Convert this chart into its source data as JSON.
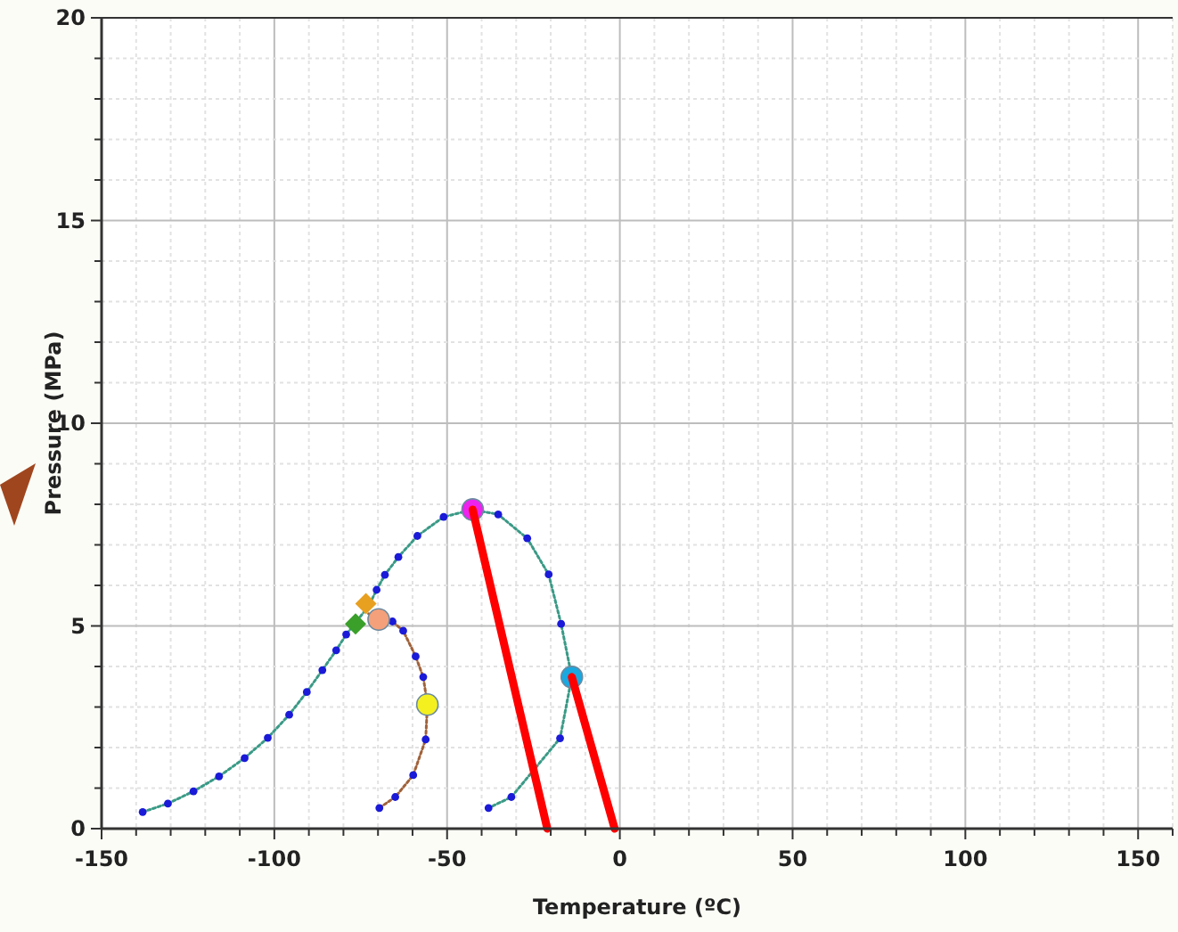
{
  "chart_data": {
    "type": "line",
    "xlabel": "Temperature (ºC)",
    "ylabel": "Pressure (MPa)",
    "xlim": [
      -150,
      160
    ],
    "ylim": [
      0,
      20
    ],
    "xticks": [
      -150,
      {
        "value": -140,
        "label": null
      },
      {
        "value": -130,
        "label": null
      },
      {
        "value": -120,
        "label": null
      },
      {
        "value": -110,
        "label": null
      },
      -100,
      {
        "value": -90,
        "label": null
      },
      {
        "value": -80,
        "label": null
      },
      {
        "value": -70,
        "label": null
      },
      {
        "value": -60,
        "label": null
      },
      -50,
      {
        "value": -40,
        "label": null
      },
      {
        "value": -30,
        "label": null
      },
      {
        "value": -20,
        "label": null
      },
      {
        "value": -10,
        "label": null
      },
      0,
      {
        "value": 10,
        "label": null
      },
      {
        "value": 20,
        "label": null
      },
      {
        "value": 30,
        "label": null
      },
      {
        "value": 40,
        "label": null
      },
      50,
      {
        "value": 60,
        "label": null
      },
      {
        "value": 70,
        "label": null
      },
      {
        "value": 80,
        "label": null
      },
      {
        "value": 90,
        "label": null
      },
      100,
      {
        "value": 110,
        "label": null
      },
      {
        "value": 120,
        "label": null
      },
      {
        "value": 130,
        "label": null
      },
      {
        "value": 140,
        "label": null
      },
      150,
      {
        "value": 160,
        "label": null
      }
    ],
    "yticks": [
      0,
      {
        "value": 1,
        "label": null
      },
      {
        "value": 2,
        "label": null
      },
      {
        "value": 3,
        "label": null
      },
      {
        "value": 4,
        "label": null
      },
      5,
      {
        "value": 6,
        "label": null
      },
      {
        "value": 7,
        "label": null
      },
      {
        "value": 8,
        "label": null
      },
      {
        "value": 9,
        "label": null
      },
      10,
      {
        "value": 11,
        "label": null
      },
      {
        "value": 12,
        "label": null
      },
      {
        "value": 13,
        "label": null
      },
      {
        "value": 14,
        "label": null
      },
      15,
      {
        "value": 16,
        "label": null
      },
      {
        "value": 17,
        "label": null
      },
      {
        "value": 18,
        "label": null
      },
      {
        "value": 19,
        "label": null
      },
      20
    ],
    "grid": true,
    "series": [
      {
        "color": "#3a9a86",
        "line_style": "dotted",
        "marker": "none",
        "x": [
          -138.1,
          -130.8,
          -123.4,
          -116,
          -108.6,
          -101.9,
          -95.7,
          -90.6,
          -86.1,
          -82.1,
          -79.2,
          -76.8,
          -72.7,
          -70.4,
          -68,
          -64.1,
          -58.6,
          -51,
          -42.6,
          -35.2,
          -26.8,
          -20.6,
          -17,
          -13.9,
          -17.3,
          -31.4,
          -38
        ],
        "values": [
          0.41,
          0.62,
          0.92,
          1.29,
          1.74,
          2.24,
          2.81,
          3.37,
          3.91,
          4.4,
          4.79,
          5.05,
          5.49,
          5.89,
          6.26,
          6.7,
          7.22,
          7.69,
          7.87,
          7.75,
          7.16,
          6.27,
          5.05,
          3.74,
          2.23,
          0.78,
          0.51
        ]
      },
      {
        "color": "#a0623a",
        "line_style": "dotted",
        "marker": "none",
        "x": [
          -72.7,
          -69.8,
          -65.8,
          -62.7,
          -59.1,
          -56.9,
          -55.7,
          -56.2,
          -59.8,
          -65,
          -69.6
        ],
        "values": [
          5.3,
          5.16,
          5.11,
          4.88,
          4.25,
          3.74,
          3.06,
          2.2,
          1.32,
          0.78,
          0.51
        ]
      },
      {
        "type": "scatter",
        "color": "#1a1ad8",
        "marker": "circle",
        "x": [
          -138.1,
          -130.8,
          -123.4,
          -116,
          -108.6,
          -101.9,
          -95.7,
          -90.6,
          -86.1,
          -82.1,
          -79.2,
          -70.4,
          -68,
          -64.1,
          -58.6,
          -51,
          -35.2,
          -26.8,
          -20.6,
          -17,
          -17.3,
          -31.4,
          -38,
          -65.8,
          -62.7,
          -59.1,
          -56.9,
          -56.2,
          -59.8,
          -65,
          -69.6
        ],
        "values": [
          0.41,
          0.62,
          0.92,
          1.29,
          1.74,
          2.24,
          2.81,
          3.37,
          3.91,
          4.4,
          4.79,
          5.89,
          6.26,
          6.7,
          7.22,
          7.69,
          7.75,
          7.16,
          6.27,
          5.05,
          2.23,
          0.78,
          0.51,
          5.11,
          4.88,
          4.25,
          3.74,
          2.2,
          1.32,
          0.78,
          0.51
        ]
      },
      {
        "type": "line",
        "color": "#ff0000",
        "line_style": "solid",
        "marker": "none",
        "x": [
          -42.6,
          -21
        ],
        "values": [
          7.87,
          0
        ]
      },
      {
        "type": "line",
        "color": "#ff0000",
        "line_style": "solid",
        "marker": "none",
        "x": [
          -13.9,
          -1.5
        ],
        "values": [
          3.74,
          0
        ]
      },
      {
        "type": "scatter",
        "color": "#3aa02a",
        "marker": "diamond",
        "x": [
          -76.5
        ],
        "values": [
          5.05
        ]
      },
      {
        "type": "scatter",
        "color": "#e8a020",
        "marker": "diamond",
        "x": [
          -73.5
        ],
        "values": [
          5.55
        ]
      },
      {
        "type": "scatter",
        "color": "#ee22ee",
        "marker": "circle",
        "x": [
          -42.6
        ],
        "values": [
          7.87
        ]
      },
      {
        "type": "scatter",
        "color": "#f4a07a",
        "marker": "circle",
        "x": [
          -69.8
        ],
        "values": [
          5.16
        ]
      },
      {
        "type": "scatter",
        "color": "#f4f020",
        "marker": "circle",
        "x": [
          -55.7
        ],
        "values": [
          3.06
        ]
      },
      {
        "type": "scatter",
        "color": "#1aa8e0",
        "marker": "circle",
        "x": [
          -13.9
        ],
        "values": [
          3.74
        ]
      }
    ]
  }
}
